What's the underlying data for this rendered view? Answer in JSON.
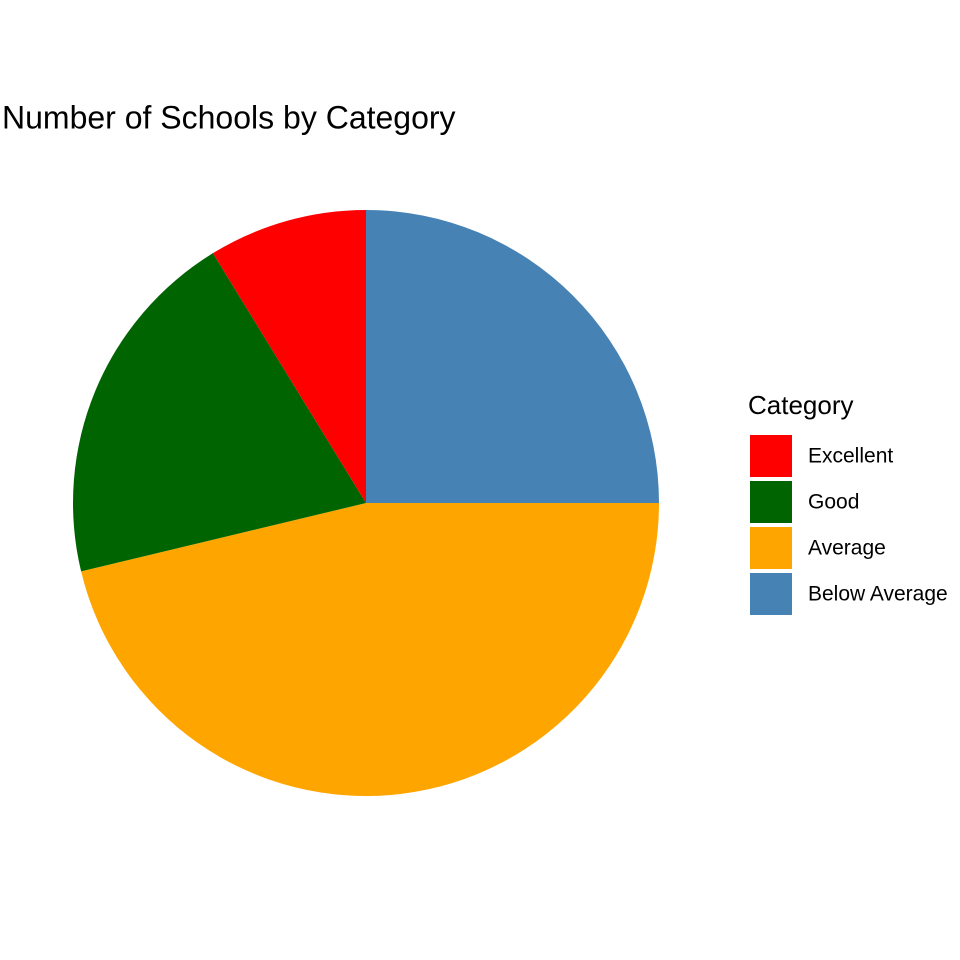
{
  "chart_data": {
    "type": "pie",
    "title": "Number of Schools by Category",
    "legend_title": "Category",
    "categories": [
      "Excellent",
      "Good",
      "Average",
      "Below Average"
    ],
    "values": [
      7,
      16,
      37,
      20
    ],
    "colors": [
      "#ff0000",
      "#006400",
      "#ffa500",
      "#4682b4"
    ],
    "legend": "right"
  }
}
